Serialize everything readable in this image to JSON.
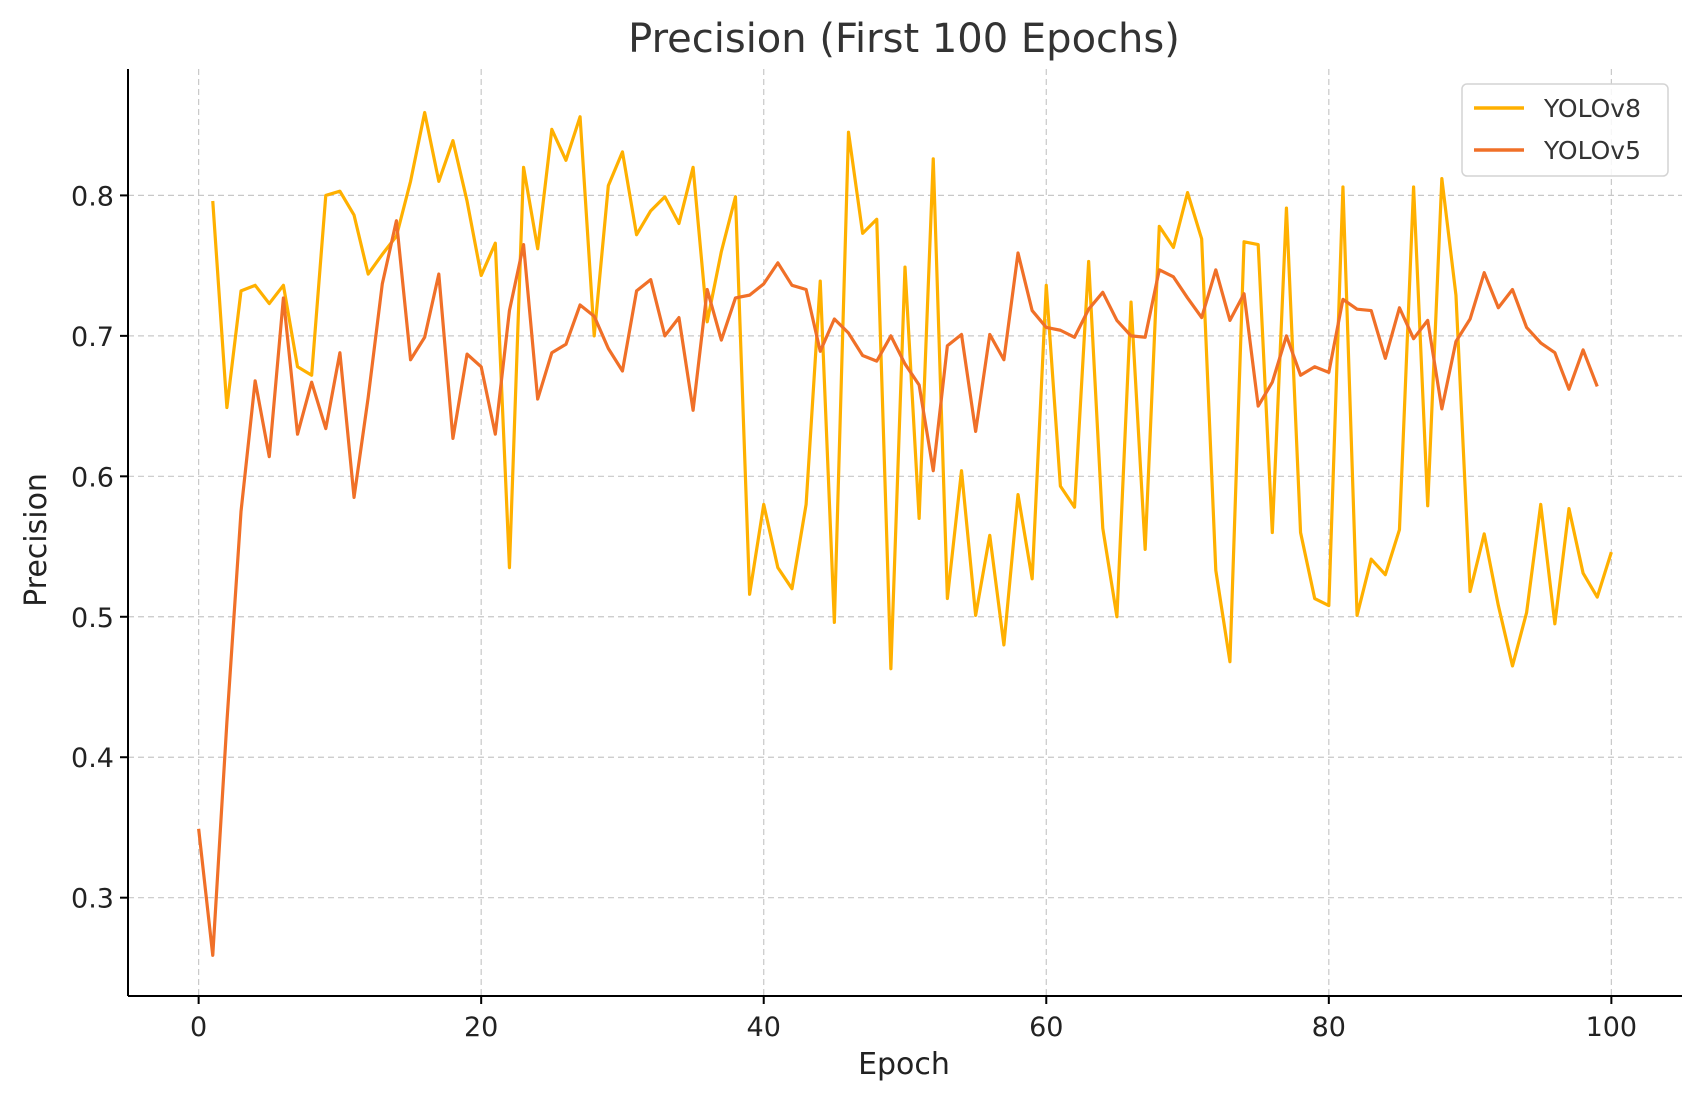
{
  "chart_data": {
    "type": "line",
    "title": "Precision (First 100 Epochs)",
    "xlabel": "Epoch",
    "ylabel": "Precision",
    "xlim": [
      -5,
      105
    ],
    "ylim": [
      0.23,
      0.89
    ],
    "xticks": [
      0,
      20,
      40,
      60,
      80,
      100
    ],
    "yticks": [
      0.3,
      0.4,
      0.5,
      0.6,
      0.7,
      0.8
    ],
    "grid": true,
    "legend_position": "top-right",
    "series": [
      {
        "name": "YOLOv8",
        "color": "#FFB000",
        "x_start": 1,
        "values": [
          0.796,
          0.649,
          0.732,
          0.736,
          0.723,
          0.736,
          0.678,
          0.672,
          0.8,
          0.803,
          0.786,
          0.744,
          0.758,
          0.771,
          0.81,
          0.859,
          0.81,
          0.839,
          0.796,
          0.743,
          0.766,
          0.535,
          0.82,
          0.762,
          0.847,
          0.825,
          0.856,
          0.7,
          0.807,
          0.831,
          0.772,
          0.789,
          0.799,
          0.78,
          0.82,
          0.71,
          0.76,
          0.799,
          0.516,
          0.58,
          0.535,
          0.52,
          0.58,
          0.739,
          0.496,
          0.845,
          0.773,
          0.783,
          0.463,
          0.749,
          0.57,
          0.826,
          0.513,
          0.604,
          0.501,
          0.558,
          0.48,
          0.587,
          0.527,
          0.736,
          0.593,
          0.578,
          0.753,
          0.563,
          0.5,
          0.724,
          0.548,
          0.778,
          0.763,
          0.802,
          0.769,
          0.533,
          0.468,
          0.767,
          0.765,
          0.56,
          0.791,
          0.56,
          0.513,
          0.508,
          0.806,
          0.501,
          0.541,
          0.53,
          0.562,
          0.806,
          0.579,
          0.812,
          0.729,
          0.518,
          0.559,
          0.508,
          0.465,
          0.503,
          0.58,
          0.495,
          0.577,
          0.531,
          0.514,
          0.546
        ]
      },
      {
        "name": "YOLOv5",
        "color": "#F07028",
        "x_start": 0,
        "values": [
          0.349,
          0.259,
          0.425,
          0.575,
          0.668,
          0.614,
          0.727,
          0.63,
          0.667,
          0.634,
          0.688,
          0.585,
          0.656,
          0.737,
          0.782,
          0.683,
          0.699,
          0.744,
          0.627,
          0.687,
          0.678,
          0.63,
          0.718,
          0.765,
          0.655,
          0.688,
          0.694,
          0.722,
          0.714,
          0.691,
          0.675,
          0.732,
          0.74,
          0.7,
          0.713,
          0.647,
          0.733,
          0.697,
          0.727,
          0.729,
          0.737,
          0.752,
          0.736,
          0.733,
          0.689,
          0.712,
          0.702,
          0.686,
          0.682,
          0.7,
          0.68,
          0.665,
          0.604,
          0.693,
          0.701,
          0.632,
          0.701,
          0.683,
          0.759,
          0.718,
          0.706,
          0.704,
          0.699,
          0.719,
          0.731,
          0.711,
          0.7,
          0.699,
          0.747,
          0.742,
          0.727,
          0.713,
          0.747,
          0.711,
          0.73,
          0.65,
          0.667,
          0.7,
          0.672,
          0.678,
          0.674,
          0.726,
          0.719,
          0.718,
          0.684,
          0.72,
          0.698,
          0.711,
          0.648,
          0.696,
          0.712,
          0.745,
          0.72,
          0.733,
          0.706,
          0.695,
          0.688,
          0.662,
          0.69,
          0.664
        ]
      }
    ]
  }
}
